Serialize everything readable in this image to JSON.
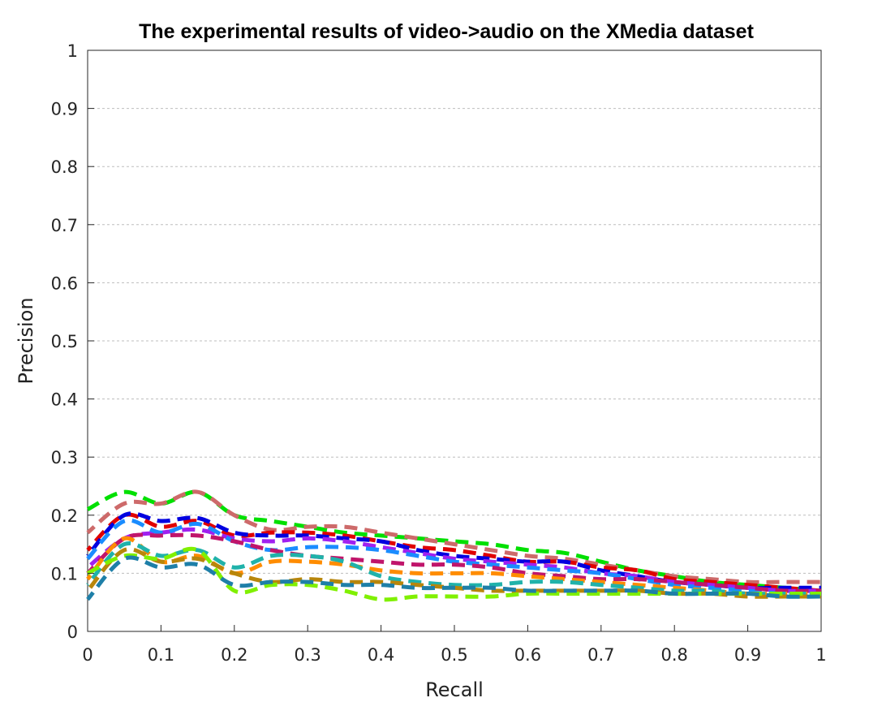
{
  "chart_data": {
    "type": "line",
    "title": "The experimental results of video->audio on the XMedia dataset",
    "xlabel": "Recall",
    "ylabel": "Precision",
    "xlim": [
      0,
      1
    ],
    "ylim": [
      0,
      1
    ],
    "xticks": [
      0,
      0.1,
      0.2,
      0.3,
      0.4,
      0.5,
      0.6,
      0.7,
      0.8,
      0.9,
      1
    ],
    "yticks": [
      0,
      0.1,
      0.2,
      0.3,
      0.4,
      0.5,
      0.6,
      0.7,
      0.8,
      0.9,
      1
    ],
    "xtick_labels": [
      "0",
      "0.1",
      "0.2",
      "0.3",
      "0.4",
      "0.5",
      "0.6",
      "0.7",
      "0.8",
      "0.9",
      "1"
    ],
    "ytick_labels": [
      "0",
      "0.1",
      "0.2",
      "0.3",
      "0.4",
      "0.5",
      "0.6",
      "0.7",
      "0.8",
      "0.9",
      "1"
    ],
    "grid": "horizontal-dashed",
    "legend": "none",
    "x": [
      0,
      0.05,
      0.1,
      0.15,
      0.2,
      0.25,
      0.3,
      0.35,
      0.4,
      0.45,
      0.5,
      0.55,
      0.6,
      0.65,
      0.7,
      0.75,
      0.8,
      0.85,
      0.9,
      0.95,
      1
    ],
    "series": [
      {
        "color": "#00e000",
        "values": [
          0.21,
          0.24,
          0.22,
          0.24,
          0.2,
          0.19,
          0.18,
          0.17,
          0.165,
          0.16,
          0.155,
          0.15,
          0.14,
          0.135,
          0.12,
          0.105,
          0.095,
          0.085,
          0.08,
          0.075,
          0.07
        ]
      },
      {
        "color": "#cd6a6a",
        "values": [
          0.17,
          0.22,
          0.22,
          0.24,
          0.2,
          0.175,
          0.18,
          0.18,
          0.17,
          0.16,
          0.15,
          0.14,
          0.13,
          0.125,
          0.115,
          0.105,
          0.095,
          0.09,
          0.085,
          0.085,
          0.085
        ]
      },
      {
        "color": "#e00000",
        "values": [
          0.14,
          0.2,
          0.18,
          0.19,
          0.165,
          0.17,
          0.17,
          0.165,
          0.155,
          0.145,
          0.14,
          0.13,
          0.12,
          0.12,
          0.11,
          0.105,
          0.09,
          0.085,
          0.08,
          0.075,
          0.07
        ]
      },
      {
        "color": "#0000e0",
        "values": [
          0.13,
          0.2,
          0.19,
          0.195,
          0.17,
          0.165,
          0.165,
          0.16,
          0.155,
          0.14,
          0.13,
          0.125,
          0.12,
          0.12,
          0.105,
          0.095,
          0.085,
          0.08,
          0.075,
          0.075,
          0.075
        ]
      },
      {
        "color": "#a020f0",
        "values": [
          0.11,
          0.16,
          0.17,
          0.175,
          0.16,
          0.155,
          0.16,
          0.155,
          0.145,
          0.135,
          0.125,
          0.12,
          0.115,
          0.11,
          0.1,
          0.095,
          0.085,
          0.08,
          0.075,
          0.07,
          0.07
        ]
      },
      {
        "color": "#1a8cff",
        "values": [
          0.125,
          0.19,
          0.17,
          0.185,
          0.155,
          0.14,
          0.145,
          0.145,
          0.14,
          0.13,
          0.12,
          0.115,
          0.11,
          0.105,
          0.1,
          0.09,
          0.08,
          0.075,
          0.07,
          0.065,
          0.065
        ]
      },
      {
        "color": "#c0156b",
        "values": [
          0.1,
          0.16,
          0.165,
          0.165,
          0.155,
          0.14,
          0.13,
          0.125,
          0.12,
          0.115,
          0.115,
          0.11,
          0.1,
          0.095,
          0.09,
          0.09,
          0.085,
          0.08,
          0.075,
          0.07,
          0.07
        ]
      },
      {
        "color": "#ff8c00",
        "values": [
          0.09,
          0.16,
          0.12,
          0.13,
          0.1,
          0.12,
          0.12,
          0.115,
          0.105,
          0.1,
          0.1,
          0.1,
          0.095,
          0.09,
          0.085,
          0.08,
          0.075,
          0.07,
          0.065,
          0.065,
          0.065
        ]
      },
      {
        "color": "#20b2aa",
        "values": [
          0.08,
          0.15,
          0.13,
          0.14,
          0.11,
          0.13,
          0.13,
          0.12,
          0.095,
          0.085,
          0.08,
          0.08,
          0.085,
          0.085,
          0.08,
          0.075,
          0.07,
          0.07,
          0.065,
          0.065,
          0.065
        ]
      },
      {
        "color": "#b8860b",
        "values": [
          0.07,
          0.14,
          0.12,
          0.125,
          0.1,
          0.085,
          0.09,
          0.085,
          0.085,
          0.08,
          0.075,
          0.07,
          0.07,
          0.07,
          0.07,
          0.07,
          0.065,
          0.065,
          0.06,
          0.06,
          0.06
        ]
      },
      {
        "color": "#80f000",
        "values": [
          0.1,
          0.13,
          0.125,
          0.14,
          0.07,
          0.08,
          0.08,
          0.07,
          0.055,
          0.06,
          0.06,
          0.06,
          0.065,
          0.065,
          0.065,
          0.065,
          0.065,
          0.065,
          0.065,
          0.065,
          0.065
        ]
      },
      {
        "color": "#1e7fa8",
        "values": [
          0.055,
          0.125,
          0.11,
          0.115,
          0.08,
          0.085,
          0.085,
          0.08,
          0.08,
          0.075,
          0.075,
          0.075,
          0.07,
          0.07,
          0.07,
          0.07,
          0.065,
          0.065,
          0.065,
          0.06,
          0.06
        ]
      }
    ]
  }
}
